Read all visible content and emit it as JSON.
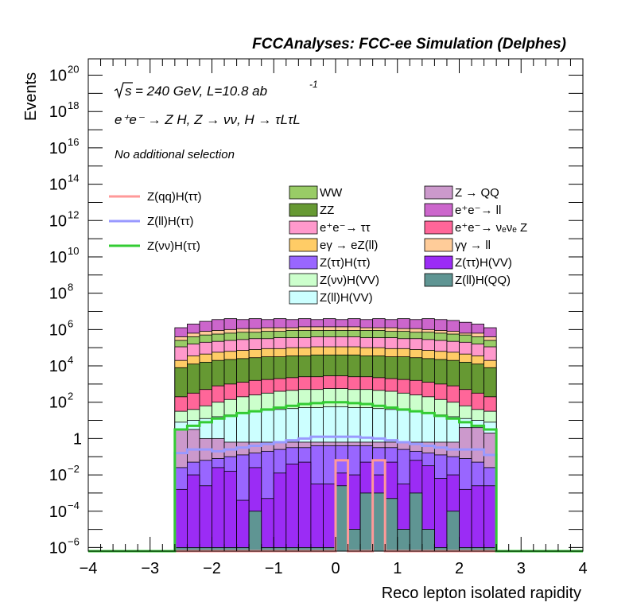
{
  "header": {
    "title": "FCCAnalyses: FCC-ee Simulation (Delphes)"
  },
  "annotations": {
    "sqrt_s": "= 240 GeV, L=10.8 ab",
    "lumi_exp": "-1",
    "process": "e⁺e⁻ → Z H, Z → νν, H → τLτL",
    "selection": "No additional selection"
  },
  "chart_data": {
    "type": "histogram",
    "xlabel": "Reco lepton isolated rapidity",
    "ylabel": "Events",
    "xlim": [
      -4,
      4
    ],
    "ylim_log10": [
      -6.2,
      20.9
    ],
    "yscale": "log",
    "xticks": [
      "−4",
      "−3",
      "−2",
      "−1",
      "0",
      "1",
      "2",
      "3",
      "4"
    ],
    "yticks": [
      {
        "log": 20,
        "label": "10",
        "exp": "20"
      },
      {
        "log": 18,
        "label": "10",
        "exp": "18"
      },
      {
        "log": 16,
        "label": "10",
        "exp": "16"
      },
      {
        "log": 14,
        "label": "10",
        "exp": "14"
      },
      {
        "log": 12,
        "label": "10",
        "exp": "12"
      },
      {
        "log": 10,
        "label": "10",
        "exp": "10"
      },
      {
        "log": 8,
        "label": "10",
        "exp": "8"
      },
      {
        "log": 6,
        "label": "10",
        "exp": "6"
      },
      {
        "log": 4,
        "label": "10",
        "exp": "4"
      },
      {
        "log": 2,
        "label": "10",
        "exp": "2"
      },
      {
        "log": 0,
        "label": "1",
        "exp": ""
      },
      {
        "log": -2,
        "label": "10",
        "exp": "−2"
      },
      {
        "log": -4,
        "label": "10",
        "exp": "−4"
      },
      {
        "log": -6,
        "label": "10",
        "exp": "−6"
      }
    ],
    "stack_range": [
      -2.6,
      2.6
    ],
    "bin_width": 0.2,
    "stack": [
      {
        "name": "ZllHQQ",
        "label": "Z(ll)H(QQ)",
        "color": "#5f9593",
        "values": [
          -6,
          -6,
          -6,
          -6,
          -6,
          -6,
          -4,
          -6,
          -6,
          -6,
          -6,
          -6,
          -6,
          -2.6,
          -5,
          -3,
          -3,
          -3.3,
          -5,
          -3,
          -5,
          -6,
          -4,
          -6,
          -6,
          -6
        ]
      },
      {
        "name": "ZttHVV",
        "label": "Z(ττ)H(VV)",
        "color": "#9b2cf5",
        "values": [
          -2.8,
          -2.0,
          -2.6,
          -1.6,
          -1.8,
          -3.4,
          -1.6,
          -3.3,
          -1.9,
          -1.4,
          -1.3,
          -2.5,
          -2.5,
          -1.9,
          -2.0,
          -1.3,
          -2.0,
          -1.3,
          -2.5,
          -1.2,
          -1.5,
          -2.2,
          -2.0,
          -2.8,
          -2.6,
          -2.6
        ]
      },
      {
        "name": "ZttHtt",
        "label": "Z(ττ)H(ττ)",
        "color": "#9966ff",
        "values": [
          -1.6,
          -1.3,
          -1.2,
          -1.1,
          -1.0,
          -0.9,
          -0.8,
          -0.7,
          -0.6,
          -0.5,
          -0.5,
          -0.4,
          -0.4,
          -0.4,
          -0.4,
          -0.4,
          -0.5,
          -0.5,
          -0.6,
          -0.7,
          -0.8,
          -0.9,
          -1.0,
          -1.1,
          -1.3,
          -1.6
        ]
      },
      {
        "name": "ZQQ",
        "label": "Z → QQ",
        "color": "#cc99cc",
        "values": [
          0.5,
          0.5,
          0.0,
          0.0,
          -0.2,
          -0.2,
          -0.2,
          -0.2,
          -0.2,
          -0.2,
          -0.2,
          -0.2,
          -0.2,
          -0.2,
          -0.2,
          -0.2,
          -0.2,
          -0.2,
          -0.2,
          -0.2,
          -0.2,
          -0.2,
          -0.2,
          0.6,
          0.6,
          0.3
        ]
      },
      {
        "name": "ZllHVV",
        "label": "Z(ll)H(VV)",
        "color": "#ccffff",
        "values": [
          0.9,
          1.0,
          1.1,
          1.2,
          1.3,
          1.4,
          1.5,
          1.55,
          1.6,
          1.65,
          1.7,
          1.7,
          1.75,
          1.75,
          1.7,
          1.7,
          1.65,
          1.6,
          1.55,
          1.5,
          1.4,
          1.3,
          1.2,
          1.1,
          1.0,
          0.9
        ]
      },
      {
        "name": "ZvvHVV",
        "label": "Z(νν)H(VV)",
        "color": "#ccffcc",
        "values": [
          1.5,
          1.6,
          1.8,
          2.0,
          2.15,
          2.3,
          2.4,
          2.5,
          2.6,
          2.65,
          2.7,
          2.7,
          2.75,
          2.75,
          2.7,
          2.7,
          2.65,
          2.6,
          2.5,
          2.4,
          2.3,
          2.15,
          2.0,
          1.8,
          1.6,
          1.5
        ]
      },
      {
        "name": "eenunuZ",
        "label": "e⁺e⁻→ νₑνₑ Z",
        "color": "#ff6699",
        "values": [
          2.3,
          2.5,
          2.7,
          2.9,
          3.0,
          3.1,
          3.2,
          3.25,
          3.3,
          3.35,
          3.4,
          3.4,
          3.45,
          3.45,
          3.4,
          3.4,
          3.35,
          3.3,
          3.25,
          3.2,
          3.1,
          3.0,
          2.9,
          2.7,
          2.5,
          2.3
        ]
      },
      {
        "name": "ZZ",
        "label": "ZZ",
        "color": "#669933",
        "values": [
          3.9,
          4.1,
          4.2,
          4.3,
          4.35,
          4.4,
          4.45,
          4.5,
          4.5,
          4.55,
          4.55,
          4.6,
          4.6,
          4.6,
          4.6,
          4.55,
          4.55,
          4.5,
          4.5,
          4.45,
          4.4,
          4.35,
          4.3,
          4.2,
          4.1,
          3.9
        ]
      },
      {
        "name": "eeZll",
        "label": "eγ → eZ(ll)",
        "color": "#ffcc66",
        "values": [
          4.3,
          4.55,
          4.65,
          4.75,
          4.8,
          4.85,
          4.9,
          4.95,
          4.95,
          5.0,
          5.0,
          5.05,
          5.05,
          5.05,
          5.05,
          5.0,
          5.0,
          4.95,
          4.95,
          4.9,
          4.85,
          4.8,
          4.75,
          4.65,
          4.55,
          4.3
        ]
      },
      {
        "name": "eetautau",
        "label": "e⁺e⁻→ ττ",
        "color": "#ff99cc",
        "values": [
          5.05,
          5.2,
          5.3,
          5.35,
          5.4,
          5.45,
          5.5,
          5.5,
          5.55,
          5.55,
          5.55,
          5.6,
          5.6,
          5.6,
          5.6,
          5.55,
          5.55,
          5.55,
          5.5,
          5.5,
          5.45,
          5.4,
          5.35,
          5.3,
          5.2,
          5.05
        ]
      },
      {
        "name": "WW",
        "label": "WW",
        "color": "#99cc66",
        "values": [
          5.4,
          5.6,
          5.7,
          5.75,
          5.8,
          5.85,
          5.85,
          5.9,
          5.9,
          5.95,
          5.95,
          5.95,
          5.95,
          5.95,
          5.95,
          5.95,
          5.95,
          5.9,
          5.9,
          5.85,
          5.85,
          5.8,
          5.75,
          5.7,
          5.6,
          5.4
        ]
      },
      {
        "name": "yyll",
        "label": "γγ → ll",
        "color": "#ffcc99",
        "values": [
          5.6,
          5.8,
          5.9,
          5.95,
          6.0,
          6.05,
          6.05,
          6.1,
          6.1,
          6.1,
          6.15,
          6.15,
          6.15,
          6.15,
          6.15,
          6.1,
          6.1,
          6.1,
          6.05,
          6.05,
          6.0,
          5.95,
          5.9,
          5.8,
          5.8,
          5.6
        ]
      },
      {
        "name": "eell",
        "label": "e⁺e⁻→ ll",
        "color": "#cc66cc",
        "values": [
          6.1,
          6.3,
          6.45,
          6.55,
          6.6,
          6.55,
          6.6,
          6.55,
          6.6,
          6.55,
          6.6,
          6.55,
          6.6,
          6.55,
          6.6,
          6.55,
          6.6,
          6.55,
          6.6,
          6.55,
          6.6,
          6.55,
          6.5,
          6.4,
          6.3,
          6.1
        ]
      }
    ],
    "signals": [
      {
        "name": "ZqqHtt",
        "label": "Z(qq)H(ττ)",
        "color": "#ff9999",
        "values": [
          -6.2,
          -6.2,
          -6.2,
          -6.2,
          -6.2,
          -6.2,
          -6.2,
          -6.2,
          -6.2,
          -6.2,
          -6.2,
          -6.2,
          -6.2,
          -1.2,
          -6.2,
          -6.2,
          -1.2,
          -6.2,
          -6.2,
          -6.2,
          -6.2,
          -6.2,
          -6.2,
          -6.2,
          -6.2,
          -6.2
        ]
      },
      {
        "name": "ZllHtt",
        "label": "Z(ll)H(ττ)",
        "color": "#9999ff",
        "values": [
          -0.8,
          -0.6,
          -0.6,
          -0.7,
          -0.6,
          -0.5,
          -0.4,
          -0.3,
          -0.2,
          -0.1,
          0.0,
          0.1,
          0.1,
          0.1,
          0.1,
          0.05,
          0.0,
          -0.1,
          -0.2,
          -0.3,
          -0.4,
          -0.5,
          -0.6,
          -0.6,
          -0.6,
          -0.9
        ]
      },
      {
        "name": "ZvvHtt",
        "label": "Z(νν)H(ττ)",
        "color": "#33cc33",
        "values": [
          0.5,
          0.7,
          0.9,
          1.1,
          1.25,
          1.4,
          1.5,
          1.6,
          1.7,
          1.8,
          1.9,
          1.95,
          2.0,
          2.0,
          1.95,
          1.9,
          1.8,
          1.7,
          1.6,
          1.5,
          1.4,
          1.25,
          1.1,
          0.9,
          0.7,
          0.5
        ]
      }
    ],
    "legend_signals": [
      "Z(qq)H(ττ)",
      "Z(ll)H(ττ)",
      "Z(νν)H(ττ)"
    ],
    "legend_left": [
      "WW",
      "ZZ",
      "e⁺e⁻→ ττ",
      "eγ → eZ(ll)",
      "Z(ττ)H(ττ)",
      "Z(νν)H(VV)",
      "Z(ll)H(VV)"
    ],
    "legend_right": [
      "Z → QQ",
      "e⁺e⁻→ ll",
      "e⁺e⁻→ νₑνₑ Z",
      "γγ → ll",
      "Z(ττ)H(VV)",
      "Z(ll)H(QQ)"
    ]
  }
}
